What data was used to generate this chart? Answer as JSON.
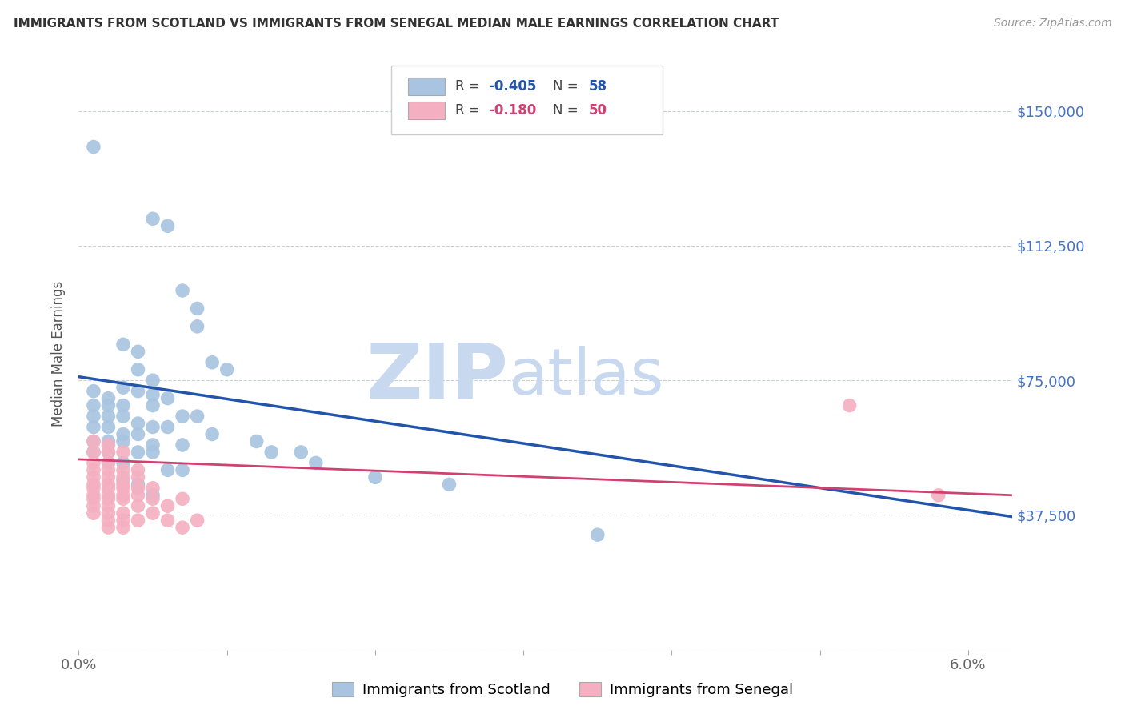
{
  "title": "IMMIGRANTS FROM SCOTLAND VS IMMIGRANTS FROM SENEGAL MEDIAN MALE EARNINGS CORRELATION CHART",
  "source": "Source: ZipAtlas.com",
  "ylabel": "Median Male Earnings",
  "xlim": [
    0.0,
    0.063
  ],
  "ylim": [
    0,
    165000
  ],
  "yticks": [
    0,
    37500,
    75000,
    112500,
    150000
  ],
  "ytick_labels": [
    "",
    "$37,500",
    "$75,000",
    "$112,500",
    "$150,000"
  ],
  "xtick_positions": [
    0.0,
    0.01,
    0.02,
    0.03,
    0.04,
    0.05,
    0.06
  ],
  "xtick_labels": [
    "0.0%",
    "",
    "",
    "",
    "",
    "",
    "6.0%"
  ],
  "scotland_R": "-0.405",
  "scotland_N": "58",
  "senegal_R": "-0.180",
  "senegal_N": "50",
  "scotland_color": "#a8c4e0",
  "senegal_color": "#f4b0c0",
  "scotland_line_color": "#2255aa",
  "senegal_line_color": "#d04070",
  "watermark_zip": "ZIP",
  "watermark_atlas": "atlas",
  "watermark_color": "#c8d8ef",
  "grid_color": "#c8d0dc",
  "title_color": "#333333",
  "right_label_color": "#4472c4",
  "scotland_points": [
    [
      0.001,
      140000
    ],
    [
      0.005,
      120000
    ],
    [
      0.006,
      118000
    ],
    [
      0.007,
      100000
    ],
    [
      0.008,
      95000
    ],
    [
      0.008,
      90000
    ],
    [
      0.003,
      85000
    ],
    [
      0.004,
      83000
    ],
    [
      0.009,
      80000
    ],
    [
      0.01,
      78000
    ],
    [
      0.004,
      78000
    ],
    [
      0.005,
      75000
    ],
    [
      0.003,
      73000
    ],
    [
      0.004,
      72000
    ],
    [
      0.005,
      71000
    ],
    [
      0.006,
      70000
    ],
    [
      0.005,
      68000
    ],
    [
      0.001,
      72000
    ],
    [
      0.002,
      70000
    ],
    [
      0.002,
      68000
    ],
    [
      0.003,
      68000
    ],
    [
      0.003,
      65000
    ],
    [
      0.001,
      68000
    ],
    [
      0.001,
      65000
    ],
    [
      0.002,
      65000
    ],
    [
      0.007,
      65000
    ],
    [
      0.008,
      65000
    ],
    [
      0.004,
      63000
    ],
    [
      0.005,
      62000
    ],
    [
      0.006,
      62000
    ],
    [
      0.001,
      62000
    ],
    [
      0.002,
      62000
    ],
    [
      0.003,
      60000
    ],
    [
      0.004,
      60000
    ],
    [
      0.009,
      60000
    ],
    [
      0.012,
      58000
    ],
    [
      0.001,
      58000
    ],
    [
      0.002,
      58000
    ],
    [
      0.003,
      58000
    ],
    [
      0.005,
      57000
    ],
    [
      0.007,
      57000
    ],
    [
      0.001,
      55000
    ],
    [
      0.002,
      55000
    ],
    [
      0.013,
      55000
    ],
    [
      0.015,
      55000
    ],
    [
      0.004,
      55000
    ],
    [
      0.005,
      55000
    ],
    [
      0.002,
      52000
    ],
    [
      0.003,
      52000
    ],
    [
      0.016,
      52000
    ],
    [
      0.006,
      50000
    ],
    [
      0.007,
      50000
    ],
    [
      0.02,
      48000
    ],
    [
      0.003,
      47000
    ],
    [
      0.004,
      46000
    ],
    [
      0.025,
      46000
    ],
    [
      0.005,
      43000
    ],
    [
      0.035,
      32000
    ]
  ],
  "senegal_points": [
    [
      0.001,
      58000
    ],
    [
      0.002,
      57000
    ],
    [
      0.001,
      55000
    ],
    [
      0.002,
      55000
    ],
    [
      0.003,
      55000
    ],
    [
      0.001,
      52000
    ],
    [
      0.002,
      52000
    ],
    [
      0.001,
      50000
    ],
    [
      0.002,
      50000
    ],
    [
      0.003,
      50000
    ],
    [
      0.004,
      50000
    ],
    [
      0.001,
      48000
    ],
    [
      0.002,
      48000
    ],
    [
      0.003,
      48000
    ],
    [
      0.004,
      48000
    ],
    [
      0.001,
      46000
    ],
    [
      0.002,
      46000
    ],
    [
      0.003,
      46000
    ],
    [
      0.001,
      45000
    ],
    [
      0.002,
      45000
    ],
    [
      0.003,
      45000
    ],
    [
      0.004,
      45000
    ],
    [
      0.005,
      45000
    ],
    [
      0.001,
      43000
    ],
    [
      0.002,
      43000
    ],
    [
      0.003,
      43000
    ],
    [
      0.004,
      43000
    ],
    [
      0.001,
      42000
    ],
    [
      0.002,
      42000
    ],
    [
      0.003,
      42000
    ],
    [
      0.005,
      42000
    ],
    [
      0.007,
      42000
    ],
    [
      0.001,
      40000
    ],
    [
      0.002,
      40000
    ],
    [
      0.004,
      40000
    ],
    [
      0.006,
      40000
    ],
    [
      0.001,
      38000
    ],
    [
      0.002,
      38000
    ],
    [
      0.003,
      38000
    ],
    [
      0.005,
      38000
    ],
    [
      0.002,
      36000
    ],
    [
      0.003,
      36000
    ],
    [
      0.004,
      36000
    ],
    [
      0.006,
      36000
    ],
    [
      0.008,
      36000
    ],
    [
      0.002,
      34000
    ],
    [
      0.003,
      34000
    ],
    [
      0.007,
      34000
    ],
    [
      0.052,
      68000
    ],
    [
      0.058,
      43000
    ]
  ]
}
